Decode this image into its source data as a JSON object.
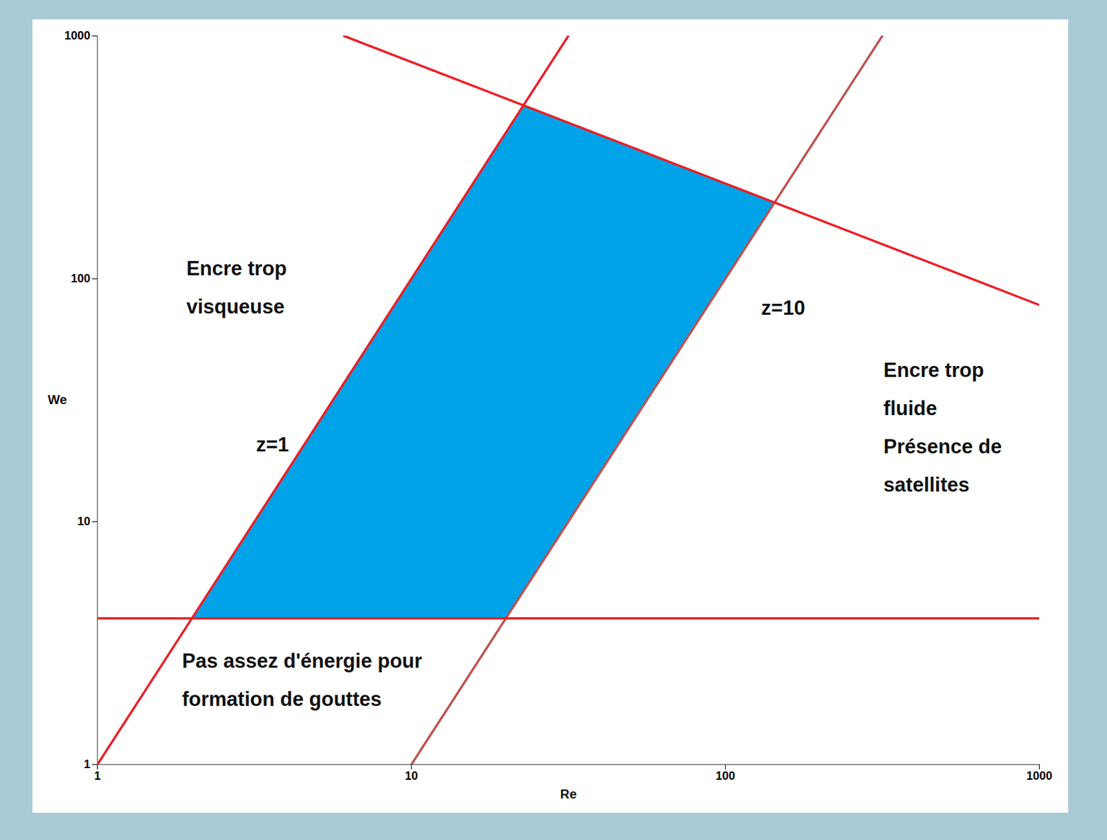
{
  "chart_data": {
    "type": "line",
    "x_label": "Re",
    "y_label": "We",
    "log": true,
    "xlim": [
      1,
      1000
    ],
    "ylim": [
      1,
      1000
    ],
    "xticks": [
      1,
      10,
      100,
      1000
    ],
    "yticks": [
      1,
      10,
      100,
      1000
    ],
    "region": {
      "color": "#00a2e8",
      "points": [
        [
          2,
          4
        ],
        [
          20,
          4
        ],
        [
          143.5,
          206
        ],
        [
          22.7,
          517
        ]
      ]
    },
    "series": [
      {
        "name": "z=1",
        "color": "#ee1c24",
        "points": [
          [
            1,
            1
          ],
          [
            31.6,
            1000
          ]
        ]
      },
      {
        "name": "z=10",
        "color": "#c0504d",
        "points": [
          [
            10,
            1
          ],
          [
            316,
            1000
          ]
        ]
      },
      {
        "color": "#ee1c24",
        "points": [
          [
            1,
            4
          ],
          [
            1000,
            4
          ]
        ]
      },
      {
        "color": "#ee1c24",
        "points": [
          [
            6.1,
            1000
          ],
          [
            1000,
            78
          ]
        ]
      }
    ],
    "annotations": [
      {
        "text": "Encre trop\nvisqueuse",
        "x": 1.92,
        "y": 97
      },
      {
        "text": "z=1",
        "x": 3.2,
        "y": 21.9
      },
      {
        "text": "z=10",
        "x": 130,
        "y": 80
      },
      {
        "text": "Encre trop\nfluide\nPrésence de\nsatellites",
        "x": 319,
        "y": 25.7
      },
      {
        "text": "Pas assez d'énergie pour\nformation de gouttes",
        "x": 1.86,
        "y": 2.34
      }
    ]
  }
}
